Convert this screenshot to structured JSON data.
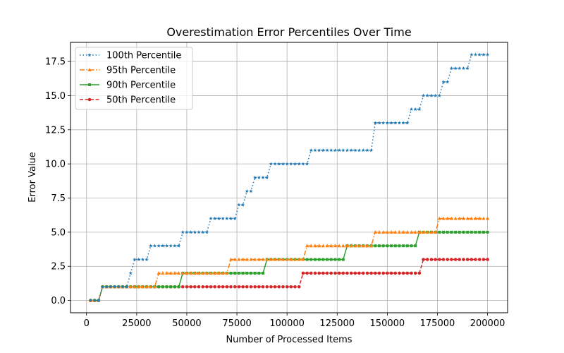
{
  "chart_data": {
    "type": "line",
    "title": "Overestimation Error Percentiles Over Time",
    "xlabel": "Number of Processed Items",
    "ylabel": "Error Value",
    "xlim": [
      -8000,
      210000
    ],
    "ylim": [
      -0.9,
      18.9
    ],
    "xticks": [
      0,
      25000,
      50000,
      75000,
      100000,
      125000,
      150000,
      175000,
      200000
    ],
    "xtick_labels": [
      "0",
      "25000",
      "50000",
      "75000",
      "100000",
      "125000",
      "150000",
      "175000",
      "200000"
    ],
    "yticks": [
      0,
      2.5,
      5,
      7.5,
      10,
      12.5,
      15,
      17.5
    ],
    "ytick_labels": [
      "0.0",
      "2.5",
      "5.0",
      "7.5",
      "10.0",
      "12.5",
      "15.0",
      "17.5"
    ],
    "grid": true,
    "legend_position": "upper-left",
    "x_start": 2000,
    "x_step": 2000,
    "series": [
      {
        "name": "100th Percentile",
        "color": "#1f77b4",
        "linestyle": "dotted",
        "marker": "star",
        "steps": [
          [
            2000,
            0
          ],
          [
            8000,
            1
          ],
          [
            22000,
            2
          ],
          [
            24000,
            3
          ],
          [
            32000,
            4
          ],
          [
            48000,
            5
          ],
          [
            62000,
            6
          ],
          [
            76000,
            7
          ],
          [
            80000,
            8
          ],
          [
            84000,
            9
          ],
          [
            92000,
            10
          ],
          [
            112000,
            11
          ],
          [
            144000,
            13
          ],
          [
            162000,
            14
          ],
          [
            168000,
            15
          ],
          [
            178000,
            16
          ],
          [
            182000,
            17
          ],
          [
            192000,
            18
          ]
        ]
      },
      {
        "name": "95th Percentile",
        "color": "#ff7f0e",
        "linestyle": "dashdot",
        "marker": "triangle",
        "steps": [
          [
            2000,
            0
          ],
          [
            8000,
            1
          ],
          [
            36000,
            2
          ],
          [
            72000,
            3
          ],
          [
            110000,
            4
          ],
          [
            144000,
            5
          ],
          [
            176000,
            6
          ]
        ]
      },
      {
        "name": "90th Percentile",
        "color": "#2ca02c",
        "linestyle": "solid",
        "marker": "square",
        "steps": [
          [
            2000,
            0
          ],
          [
            8000,
            1
          ],
          [
            48000,
            2
          ],
          [
            90000,
            3
          ],
          [
            130000,
            4
          ],
          [
            166000,
            5
          ]
        ]
      },
      {
        "name": "50th Percentile",
        "color": "#d62728",
        "linestyle": "dashed",
        "marker": "circle",
        "steps": [
          [
            2000,
            0
          ],
          [
            8000,
            1
          ],
          [
            108000,
            2
          ],
          [
            168000,
            3
          ]
        ]
      }
    ]
  }
}
